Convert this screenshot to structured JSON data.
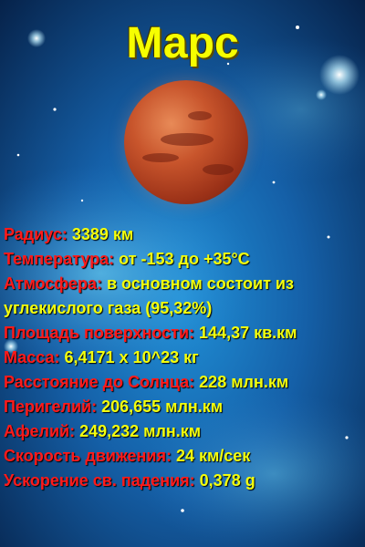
{
  "title": "Марс",
  "facts": [
    {
      "label": "Радиус:",
      "value": "3389 км"
    },
    {
      "label": "Температура:",
      "value": "от -153 до +35°C"
    },
    {
      "label": "Атмосфера:",
      "value": "в основном состоит из углекислого газа (95,32%)"
    },
    {
      "label": "Площадь поверхности:",
      "value": "144,37 кв.км"
    },
    {
      "label": "Масса:",
      "value": "6,4171 х 10^23 кг"
    },
    {
      "label": "Расстояние до Солнца:",
      "value": "228 млн.км"
    },
    {
      "label": "Перигелий:",
      "value": "206,655 млн.км"
    },
    {
      "label": "Афелий:",
      "value": "249,232 млн.км"
    },
    {
      "label": "Скорость движения:",
      "value": "24 км/сек"
    },
    {
      "label": "Ускорение св. падения:",
      "value": "0,378 g"
    }
  ],
  "colors": {
    "title": "#f6ff00",
    "label": "#ff1a1a",
    "value": "#f3ff0d",
    "background": "#0b2a55"
  }
}
